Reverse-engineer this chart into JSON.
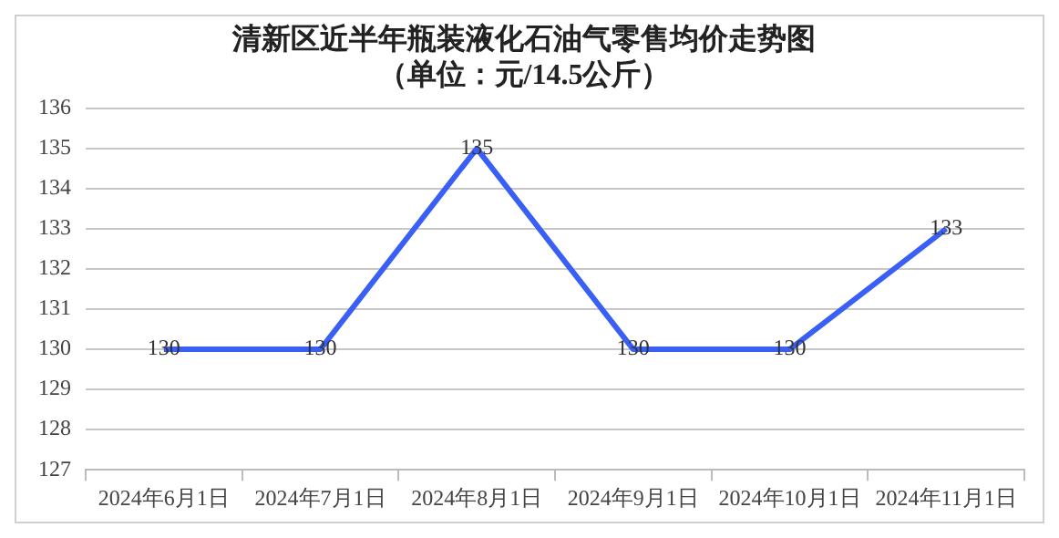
{
  "chart_data": {
    "type": "line",
    "title": "清新区近半年瓶装液化石油气零售均价走势图",
    "subtitle": "（单位：元/14.5公斤）",
    "categories": [
      "2024年6月1日",
      "2024年7月1日",
      "2024年8月1日",
      "2024年9月1日",
      "2024年10月1日",
      "2024年11月1日"
    ],
    "series": [
      {
        "color": "#3a5ff5",
        "values": [
          130,
          130,
          135,
          130,
          130,
          133
        ]
      }
    ],
    "ylim": [
      127,
      136
    ],
    "yticks": [
      127,
      128,
      129,
      130,
      131,
      132,
      133,
      134,
      135,
      136
    ],
    "grid": "y",
    "legend": false,
    "marker": "none",
    "line_style": "solid",
    "data_labels": true
  }
}
